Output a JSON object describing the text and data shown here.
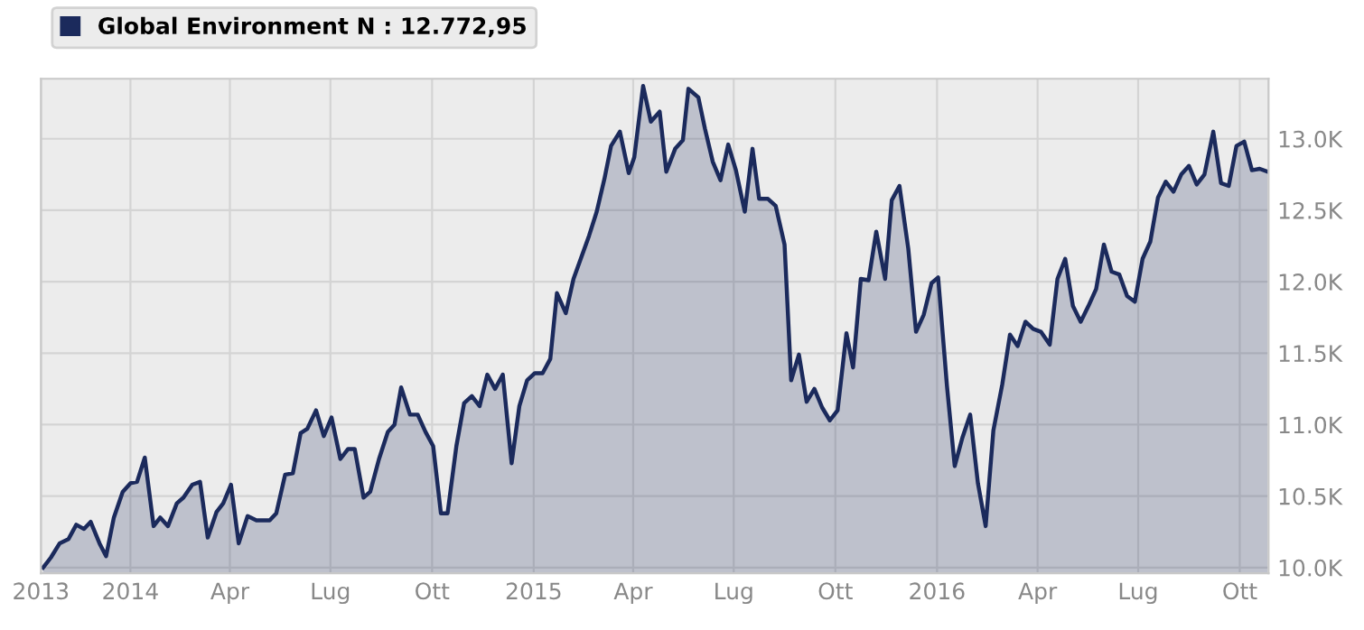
{
  "chart_data": {
    "type": "area",
    "xlim": [
      "2013-10-12",
      "2016-10-27"
    ],
    "ylim": [
      9960,
      13420
    ],
    "xticks": [
      {
        "value": "2013-10-12",
        "label": "2013"
      },
      {
        "value": "2014-01-01",
        "label": "2014"
      },
      {
        "value": "2014-04-01",
        "label": "Apr"
      },
      {
        "value": "2014-07-01",
        "label": "Lug"
      },
      {
        "value": "2014-10-01",
        "label": "Ott"
      },
      {
        "value": "2015-01-01",
        "label": "2015"
      },
      {
        "value": "2015-04-01",
        "label": "Apr"
      },
      {
        "value": "2015-07-01",
        "label": "Lug"
      },
      {
        "value": "2015-10-01",
        "label": "Ott"
      },
      {
        "value": "2016-01-01",
        "label": "2016"
      },
      {
        "value": "2016-04-01",
        "label": "Apr"
      },
      {
        "value": "2016-07-01",
        "label": "Lug"
      },
      {
        "value": "2016-10-01",
        "label": "Ott"
      }
    ],
    "yticks": [
      {
        "value": 10000,
        "label": "10.0K"
      },
      {
        "value": 10500,
        "label": "10.5K"
      },
      {
        "value": 11000,
        "label": "11.0K"
      },
      {
        "value": 11500,
        "label": "11.5K"
      },
      {
        "value": 12000,
        "label": "12.0K"
      },
      {
        "value": 12500,
        "label": "12.5K"
      },
      {
        "value": 13000,
        "label": "13.0K"
      }
    ],
    "grid": true,
    "legend": "top left",
    "series": [
      {
        "name": "Global Environment N : 12.772,95",
        "color": "#1b2a5c",
        "x": [
          "2013-10-14",
          "2013-10-21",
          "2013-10-29",
          "2013-11-06",
          "2013-11-13",
          "2013-11-20",
          "2013-11-26",
          "2013-12-04",
          "2013-12-10",
          "2013-12-17",
          "2013-12-25",
          "2014-01-01",
          "2014-01-07",
          "2014-01-14",
          "2014-01-22",
          "2014-01-28",
          "2014-02-04",
          "2014-02-12",
          "2014-02-18",
          "2014-02-26",
          "2014-03-05",
          "2014-03-12",
          "2014-03-20",
          "2014-03-26",
          "2014-04-02",
          "2014-04-09",
          "2014-04-17",
          "2014-04-25",
          "2014-05-07",
          "2014-05-13",
          "2014-05-21",
          "2014-05-28",
          "2014-06-04",
          "2014-06-10",
          "2014-06-18",
          "2014-06-25",
          "2014-07-02",
          "2014-07-10",
          "2014-07-17",
          "2014-07-23",
          "2014-07-31",
          "2014-08-06",
          "2014-08-14",
          "2014-08-22",
          "2014-08-28",
          "2014-09-03",
          "2014-09-11",
          "2014-09-18",
          "2014-09-25",
          "2014-10-02",
          "2014-10-09",
          "2014-10-15",
          "2014-10-23",
          "2014-10-30",
          "2014-11-06",
          "2014-11-13",
          "2014-11-20",
          "2014-11-27",
          "2014-12-04",
          "2014-12-12",
          "2014-12-19",
          "2014-12-26",
          "2015-01-02",
          "2015-01-09",
          "2015-01-16",
          "2015-01-22",
          "2015-01-30",
          "2015-02-06",
          "2015-02-13",
          "2015-02-20",
          "2015-02-27",
          "2015-03-06",
          "2015-03-12",
          "2015-03-20",
          "2015-03-28",
          "2015-04-02",
          "2015-04-10",
          "2015-04-17",
          "2015-04-25",
          "2015-05-01",
          "2015-05-09",
          "2015-05-16",
          "2015-05-21",
          "2015-05-30",
          "2015-06-05",
          "2015-06-12",
          "2015-06-19",
          "2015-06-26",
          "2015-07-03",
          "2015-07-11",
          "2015-07-18",
          "2015-07-24",
          "2015-08-01",
          "2015-08-08",
          "2015-08-16",
          "2015-08-22",
          "2015-08-29",
          "2015-09-05",
          "2015-09-12",
          "2015-09-19",
          "2015-09-26",
          "2015-10-03",
          "2015-10-11",
          "2015-10-17",
          "2015-10-24",
          "2015-10-31",
          "2015-11-07",
          "2015-11-15",
          "2015-11-21",
          "2015-11-28",
          "2015-12-06",
          "2015-12-13",
          "2015-12-20",
          "2015-12-27",
          "2016-01-02",
          "2016-01-10",
          "2016-01-17",
          "2016-01-24",
          "2016-01-31",
          "2016-02-07",
          "2016-02-14",
          "2016-02-21",
          "2016-02-29",
          "2016-03-07",
          "2016-03-14",
          "2016-03-21",
          "2016-03-28",
          "2016-04-04",
          "2016-04-12",
          "2016-04-19",
          "2016-04-26",
          "2016-05-03",
          "2016-05-10",
          "2016-05-17",
          "2016-05-24",
          "2016-05-31",
          "2016-06-07",
          "2016-06-14",
          "2016-06-21",
          "2016-06-28",
          "2016-07-05",
          "2016-07-12",
          "2016-07-19",
          "2016-07-26",
          "2016-08-02",
          "2016-08-09",
          "2016-08-16",
          "2016-08-23",
          "2016-08-30",
          "2016-09-07",
          "2016-09-14",
          "2016-09-21",
          "2016-09-28",
          "2016-10-05",
          "2016-10-12",
          "2016-10-19",
          "2016-10-26"
        ],
        "values": [
          10000,
          10070,
          10170,
          10200,
          10300,
          10270,
          10320,
          10170,
          10080,
          10350,
          10530,
          10590,
          10600,
          10770,
          10290,
          10350,
          10290,
          10450,
          10490,
          10580,
          10600,
          10210,
          10390,
          10450,
          10580,
          10170,
          10360,
          10330,
          10330,
          10380,
          10650,
          10660,
          10940,
          10970,
          11100,
          10920,
          11050,
          10760,
          10830,
          10830,
          10490,
          10530,
          10760,
          10950,
          11000,
          11260,
          11070,
          11070,
          10950,
          10850,
          10380,
          10380,
          10850,
          11150,
          11200,
          11130,
          11350,
          11250,
          11350,
          10730,
          11130,
          11310,
          11360,
          11360,
          11460,
          11920,
          11780,
          12020,
          12170,
          12320,
          12490,
          12720,
          12950,
          13050,
          12760,
          12870,
          13370,
          13120,
          13190,
          12770,
          12930,
          12990,
          13350,
          13290,
          13070,
          12840,
          12710,
          12960,
          12780,
          12490,
          12930,
          12580,
          12580,
          12530,
          12260,
          11310,
          11490,
          11160,
          11250,
          11120,
          11030,
          11100,
          11640,
          11400,
          12020,
          12010,
          12350,
          12020,
          12570,
          12670,
          12230,
          11650,
          11770,
          11990,
          12030,
          11270,
          10710,
          10910,
          11070,
          10590,
          10290,
          10960,
          11280,
          11630,
          11550,
          11720,
          11670,
          11650,
          11560,
          12020,
          12160,
          11830,
          11720,
          11830,
          11950,
          12260,
          12070,
          12050,
          11900,
          11860,
          12160,
          12280,
          12590,
          12700,
          12630,
          12750,
          12810,
          12680,
          12750,
          13050,
          12690,
          12670,
          12950,
          12980,
          12780,
          12790,
          12770
        ]
      }
    ]
  }
}
